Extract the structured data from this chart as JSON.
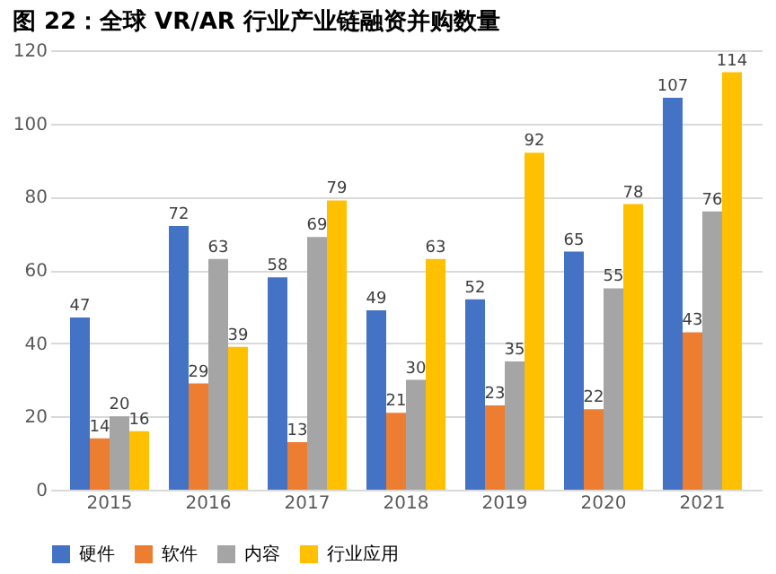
{
  "chart_data": {
    "type": "bar",
    "title": "图 22：全球 VR/AR 行业产业链融资并购数量",
    "categories": [
      "2015",
      "2016",
      "2017",
      "2018",
      "2019",
      "2020",
      "2021"
    ],
    "series": [
      {
        "name": "硬件",
        "color": "#4472c4",
        "values": [
          47,
          72,
          58,
          49,
          52,
          65,
          107
        ]
      },
      {
        "name": "软件",
        "color": "#ed7d31",
        "values": [
          14,
          29,
          13,
          21,
          23,
          22,
          43
        ]
      },
      {
        "name": "内容",
        "color": "#a5a5a5",
        "values": [
          20,
          63,
          69,
          30,
          35,
          55,
          76
        ]
      },
      {
        "name": "行业应用",
        "color": "#ffc000",
        "values": [
          16,
          39,
          79,
          63,
          92,
          78,
          114
        ]
      }
    ],
    "ylim": [
      0,
      120
    ],
    "yticks": [
      0,
      20,
      40,
      60,
      80,
      100,
      120
    ],
    "grid": "y",
    "legend": "bottom",
    "data_labels": true
  }
}
